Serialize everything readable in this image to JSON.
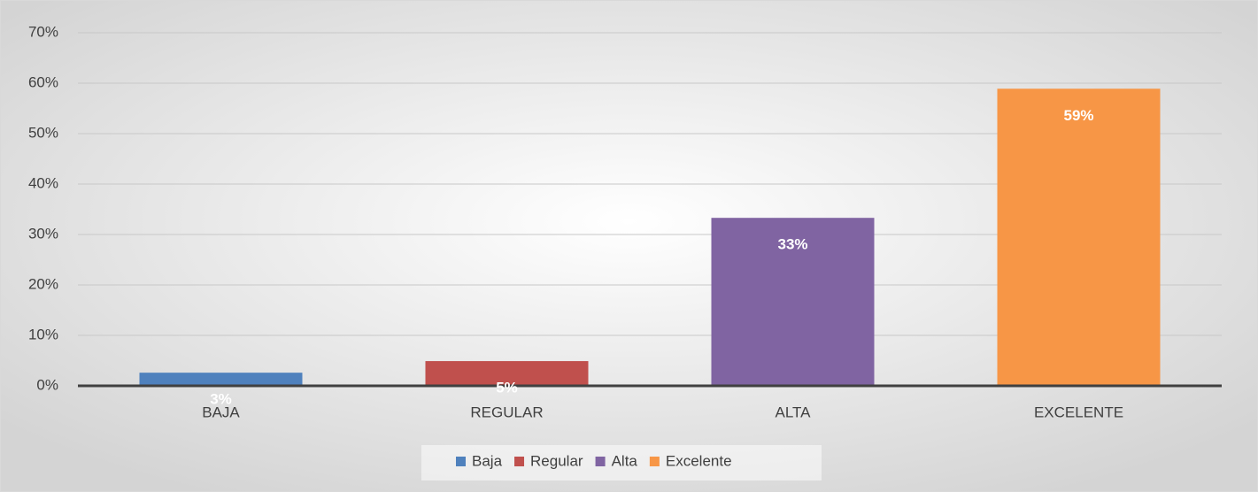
{
  "chart_data": {
    "type": "bar",
    "categories": [
      "BAJA",
      "REGULAR",
      "ALTA",
      "EXCELENTE"
    ],
    "series": [
      {
        "name": "Baja",
        "color": "#4f81bd",
        "values": [
          2.6,
          null,
          null,
          null
        ],
        "value_labels": [
          "3%",
          null,
          null,
          null
        ]
      },
      {
        "name": "Regular",
        "color": "#c0504d",
        "values": [
          null,
          4.9,
          null,
          null
        ],
        "value_labels": [
          null,
          "5%",
          null,
          null
        ]
      },
      {
        "name": "Alta",
        "color": "#8064a2",
        "values": [
          null,
          null,
          33.3,
          null
        ],
        "value_labels": [
          null,
          null,
          "33%",
          null
        ]
      },
      {
        "name": "Excelente",
        "color": "#f79646",
        "values": [
          null,
          null,
          null,
          58.9
        ],
        "value_labels": [
          null,
          null,
          null,
          "59%"
        ]
      }
    ],
    "ylim": [
      0,
      70
    ],
    "yticks": [
      {
        "value": 0,
        "label": "0%"
      },
      {
        "value": 10,
        "label": "10%"
      },
      {
        "value": 20,
        "label": "20%"
      },
      {
        "value": 30,
        "label": "30%"
      },
      {
        "value": 40,
        "label": "40%"
      },
      {
        "value": 50,
        "label": "50%"
      },
      {
        "value": 60,
        "label": "60%"
      },
      {
        "value": 70,
        "label": "70%"
      }
    ],
    "grid": true,
    "legend": "bottom"
  }
}
